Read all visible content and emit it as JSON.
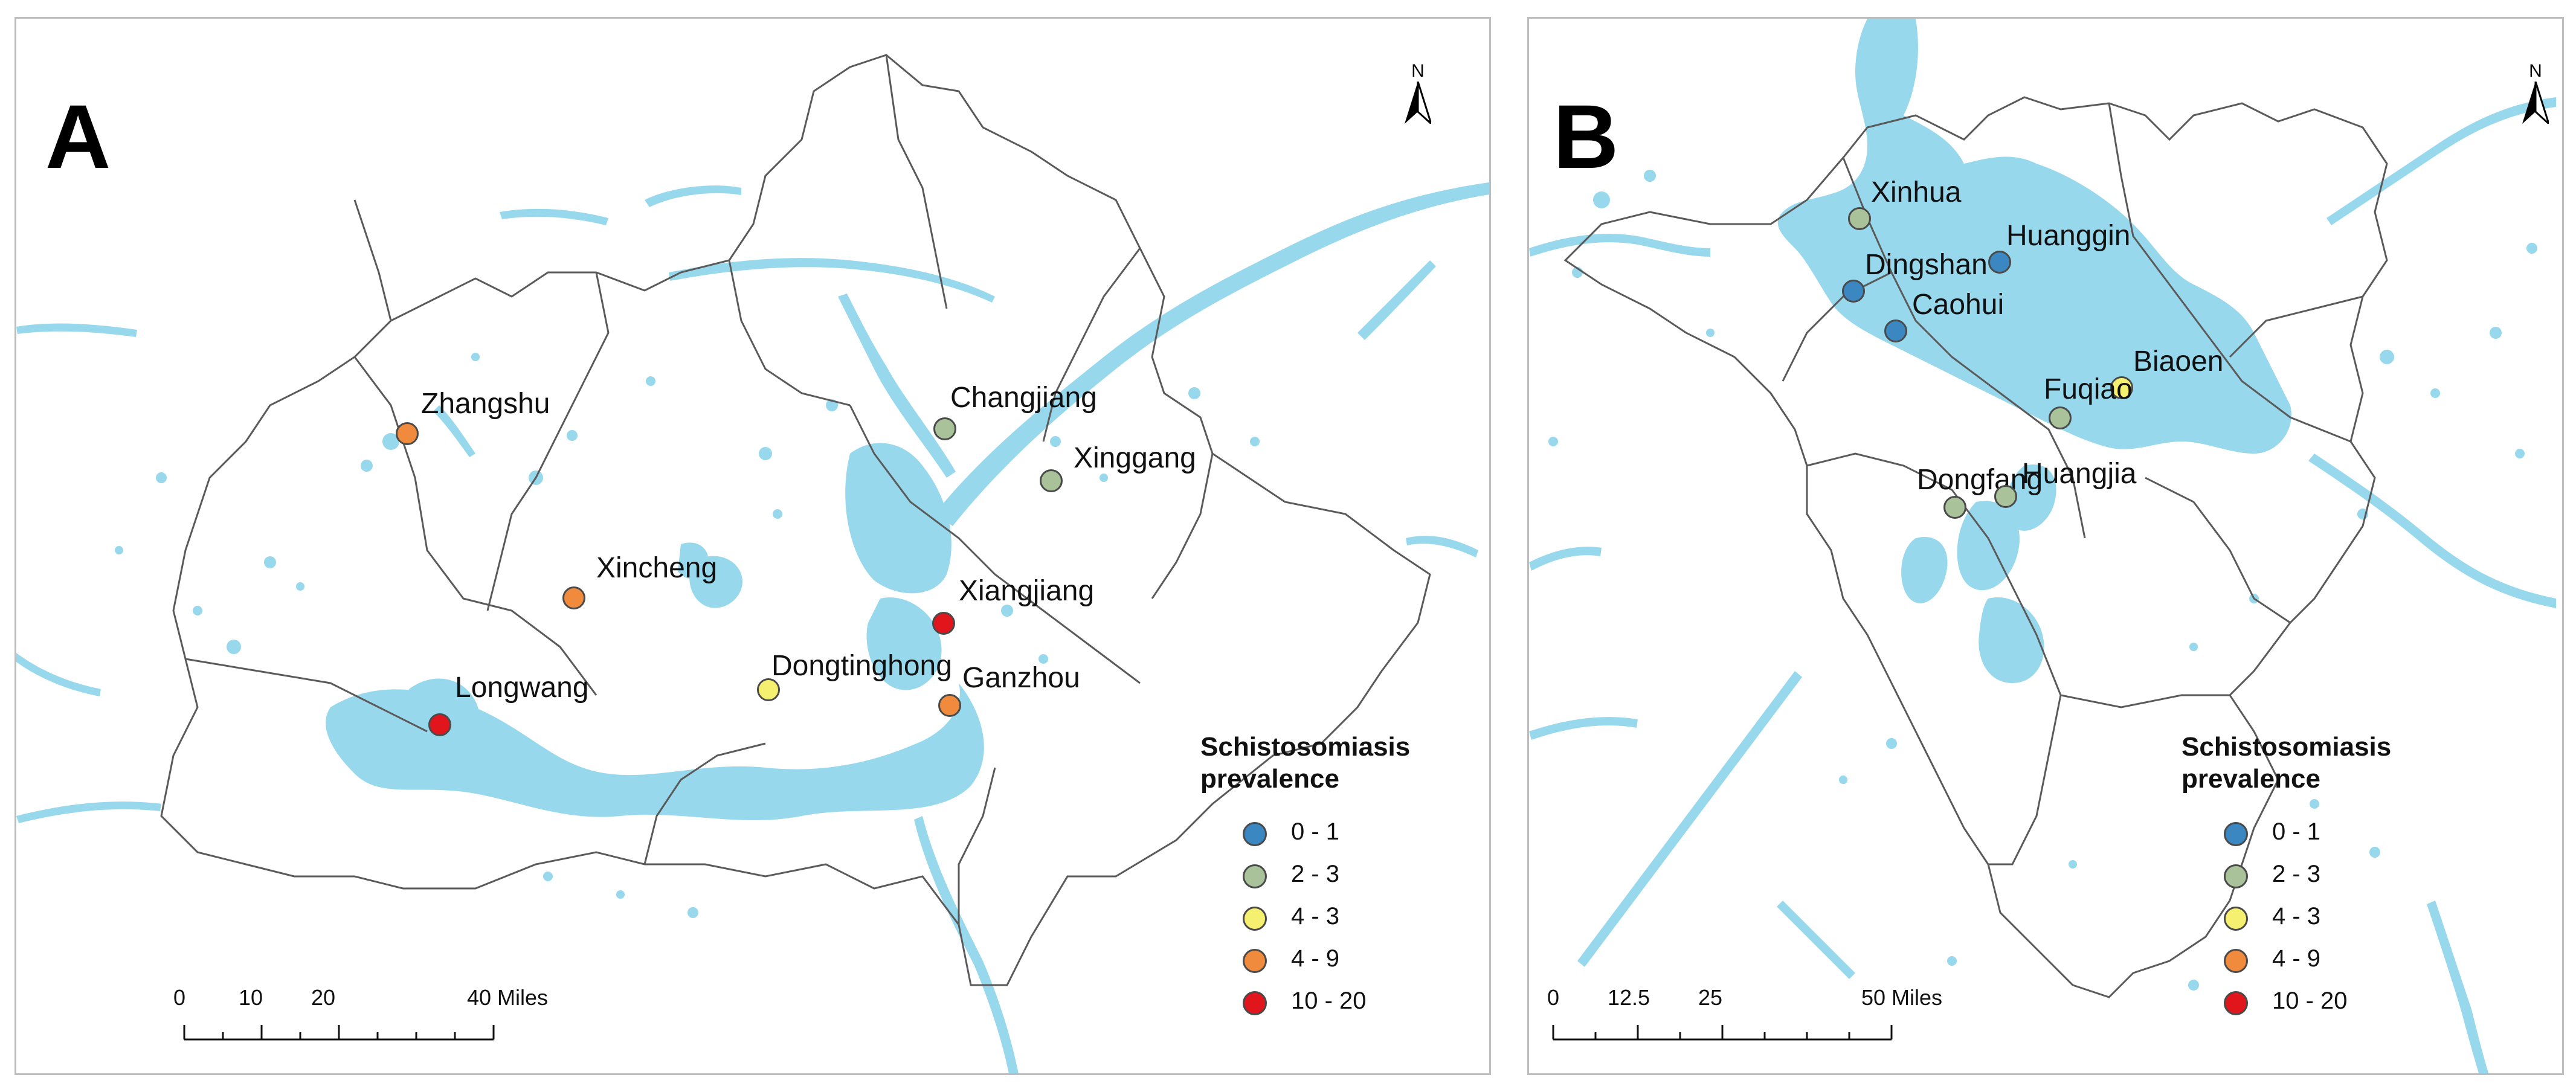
{
  "panels": [
    {
      "letter": "A",
      "north_label": "N",
      "sites": [
        {
          "name": "Zhangshu",
          "category": "4 - 9"
        },
        {
          "name": "Changjiang",
          "category": "2 - 3"
        },
        {
          "name": "Xinggang",
          "category": "2 - 3"
        },
        {
          "name": "Xincheng",
          "category": "4 - 9"
        },
        {
          "name": "Xiangjiang",
          "category": "10 - 20"
        },
        {
          "name": "Dongtinghong",
          "category": "4 - 3"
        },
        {
          "name": "Ganzhou",
          "category": "4 - 9"
        },
        {
          "name": "Longwang",
          "category": "10 - 20"
        }
      ],
      "scale": {
        "ticks": [
          "0",
          "10",
          "20",
          "40 Miles"
        ]
      }
    },
    {
      "letter": "B",
      "north_label": "N",
      "sites": [
        {
          "name": "Xinhua",
          "category": "2 - 3"
        },
        {
          "name": "Huanggin",
          "category": "0 - 1"
        },
        {
          "name": "Dingshan",
          "category": "0 - 1"
        },
        {
          "name": "Caohui",
          "category": "0 - 1"
        },
        {
          "name": "Biaoen",
          "category": "4 - 3"
        },
        {
          "name": "Fuqiao",
          "category": "2 - 3"
        },
        {
          "name": "Dongfang",
          "category": "2 - 3"
        },
        {
          "name": "Huangjia",
          "category": "2 - 3"
        }
      ],
      "scale": {
        "ticks": [
          "0",
          "12.5",
          "25",
          "50 Miles"
        ]
      }
    }
  ],
  "legend": {
    "title": "Schistosomiasis\nprevalence",
    "items": [
      {
        "label": "0 - 1",
        "color": "#3a87c2"
      },
      {
        "label": "2 - 3",
        "color": "#a9c29a"
      },
      {
        "label": "4 - 3",
        "color": "#f6f070"
      },
      {
        "label": "4 - 9",
        "color": "#f08a3c"
      },
      {
        "label": "10 - 20",
        "color": "#e0161c"
      }
    ]
  },
  "colors": {
    "water": "#97d8ed",
    "boundary": "#5a5a5a",
    "marker_outline": "#4a4a4a"
  }
}
